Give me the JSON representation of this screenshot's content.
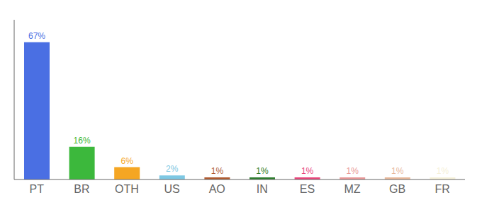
{
  "chart_data": {
    "type": "bar",
    "categories": [
      "PT",
      "BR",
      "OTH",
      "US",
      "AO",
      "IN",
      "ES",
      "MZ",
      "GB",
      "FR"
    ],
    "values": [
      67,
      16,
      6,
      2,
      1,
      1,
      1,
      1,
      1,
      1
    ],
    "value_labels": [
      "67%",
      "16%",
      "6%",
      "2%",
      "1%",
      "1%",
      "1%",
      "1%",
      "1%",
      "1%"
    ],
    "colors": [
      "#4a6fe3",
      "#3cb83c",
      "#f5a623",
      "#7ec8e3",
      "#b05a2f",
      "#2e7d2e",
      "#e8457a",
      "#e89898",
      "#e8b89a",
      "#f5f0d8"
    ],
    "ylim": [
      0,
      78
    ],
    "data_labels": true,
    "tick_labels": "x"
  }
}
